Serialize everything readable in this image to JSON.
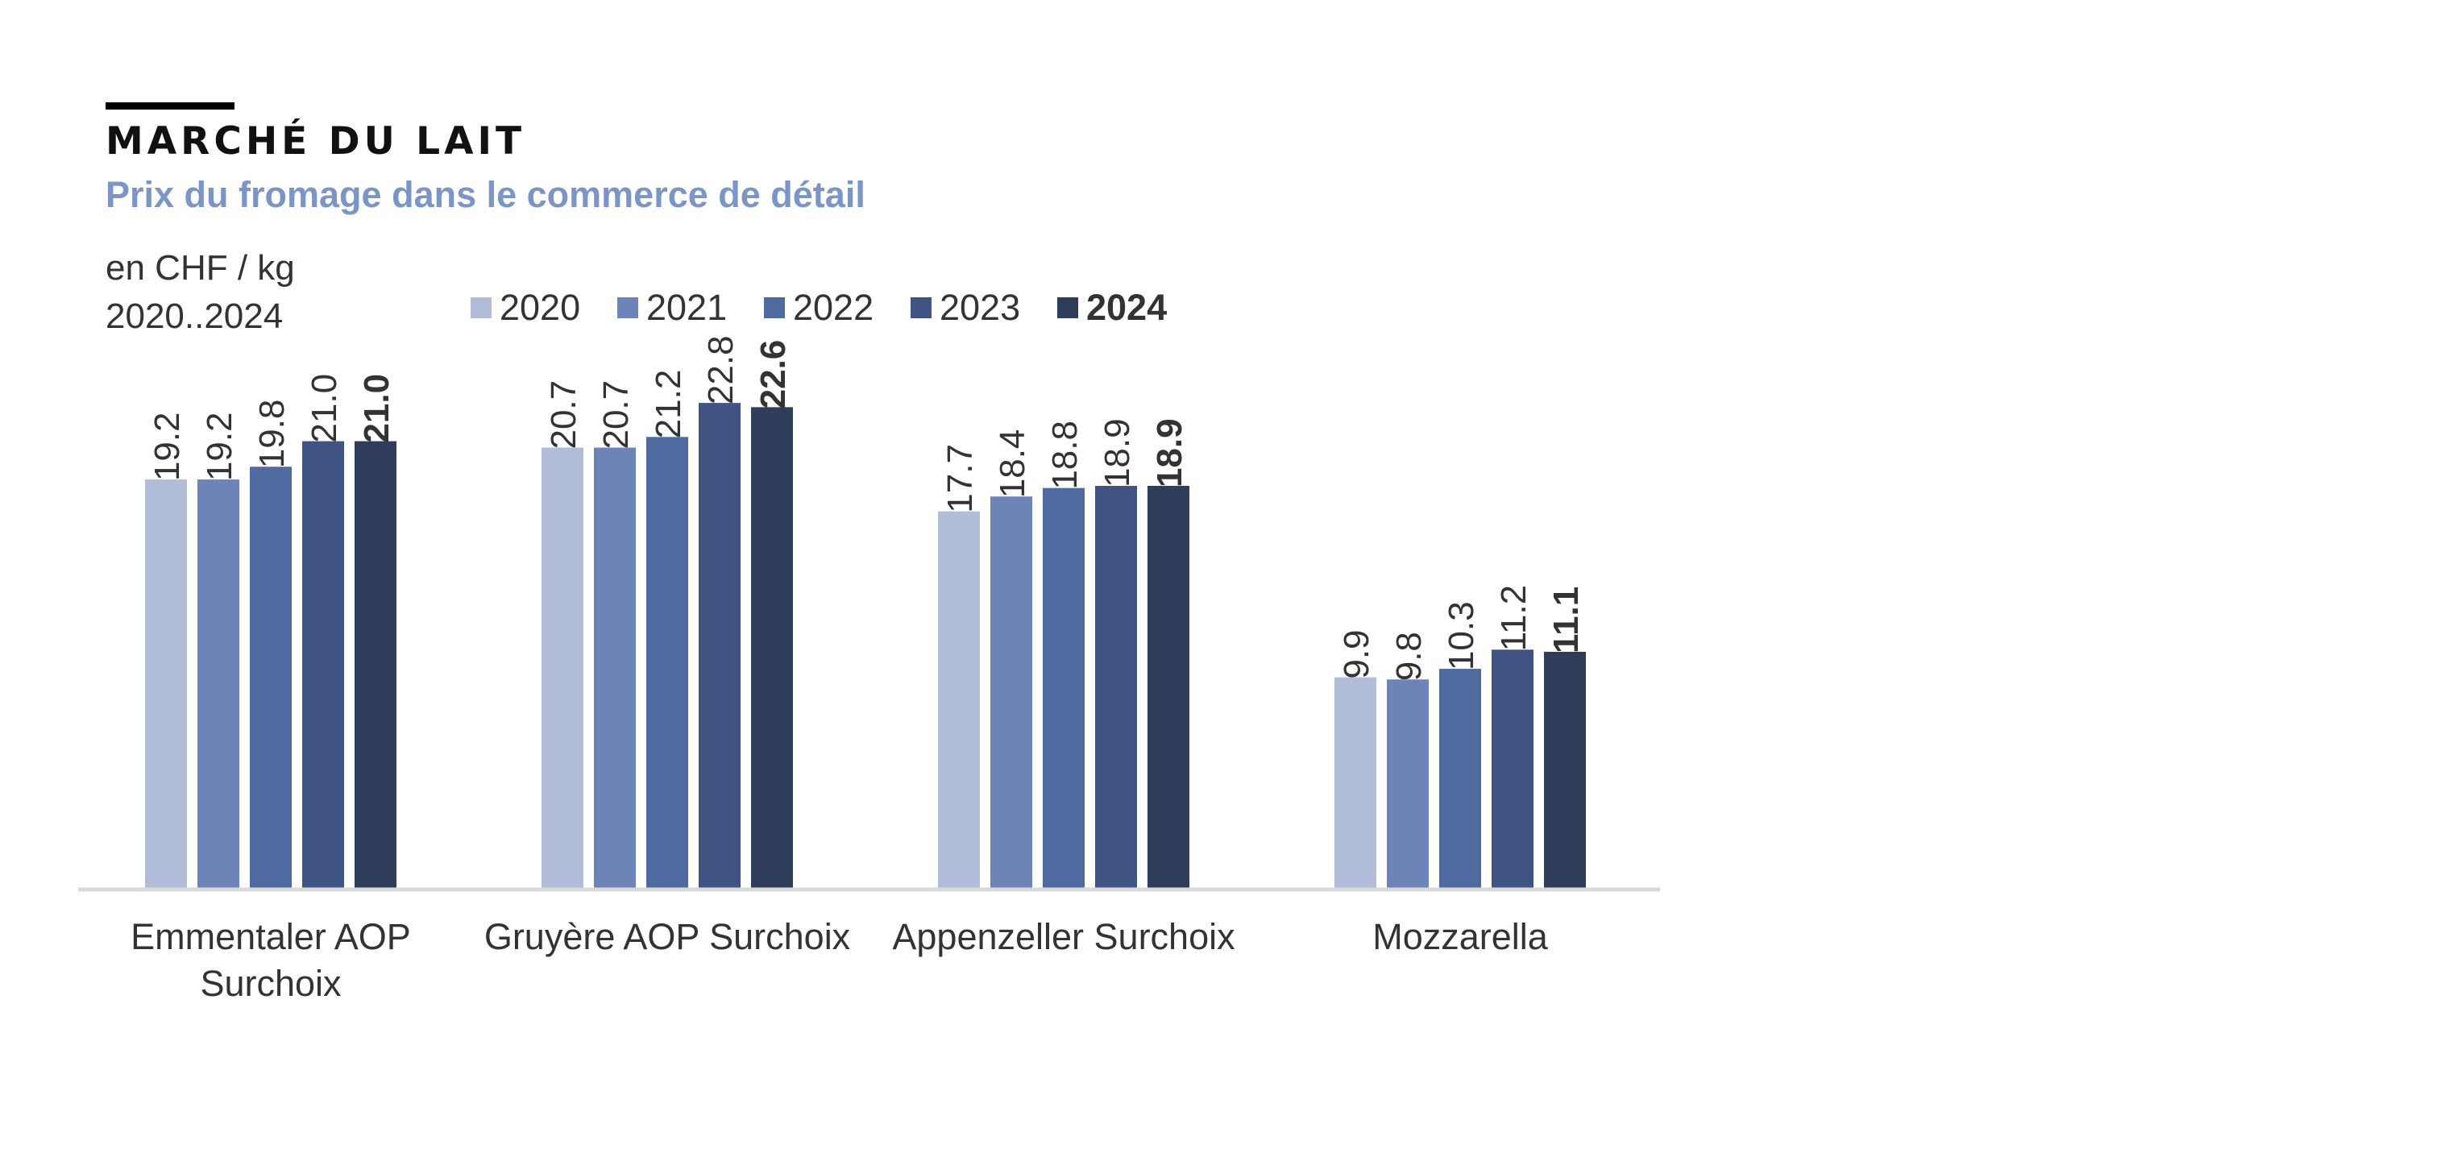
{
  "header": {
    "title": "MARCHÉ DU LAIT",
    "subtitle": "Prix du fromage dans le commerce de détail",
    "unit": "en CHF / kg",
    "period": "2020..2024"
  },
  "colors": {
    "2020": "#b1bcd9",
    "2021": "#6c84b8",
    "2022": "#4f6a9f",
    "2023": "#3f5482",
    "2024": "#2e3d5a",
    "axis": "#d9d9d9",
    "text": "#333333"
  },
  "chart_data": {
    "type": "bar",
    "categories": [
      "Emmentaler AOP Surchoix",
      "Gruyère AOP Surchoix",
      "Appenzeller Surchoix",
      "Mozzarella"
    ],
    "series": [
      {
        "name": "2020",
        "values": [
          19.2,
          20.7,
          17.7,
          9.9
        ],
        "labels": [
          "19.2",
          "20.7",
          "17.7",
          "9.9"
        ]
      },
      {
        "name": "2021",
        "values": [
          19.2,
          20.7,
          18.4,
          9.8
        ],
        "labels": [
          "19.2",
          "20.7",
          "18.4",
          "9.8"
        ]
      },
      {
        "name": "2022",
        "values": [
          19.8,
          21.2,
          18.8,
          10.3
        ],
        "labels": [
          "19.8",
          "21.2",
          "18.8",
          "10.3"
        ]
      },
      {
        "name": "2023",
        "values": [
          21.0,
          22.8,
          18.9,
          11.2
        ],
        "labels": [
          "21.0",
          "22.8",
          "18.9",
          "11.2"
        ]
      },
      {
        "name": "2024",
        "values": [
          21.0,
          22.6,
          18.9,
          11.1
        ],
        "labels": [
          "21.0",
          "22.6",
          "18.9",
          "11.1"
        ]
      }
    ],
    "highlight_series": "2024",
    "legend_position": "top",
    "grid": false,
    "ylim": [
      0,
      35
    ]
  }
}
